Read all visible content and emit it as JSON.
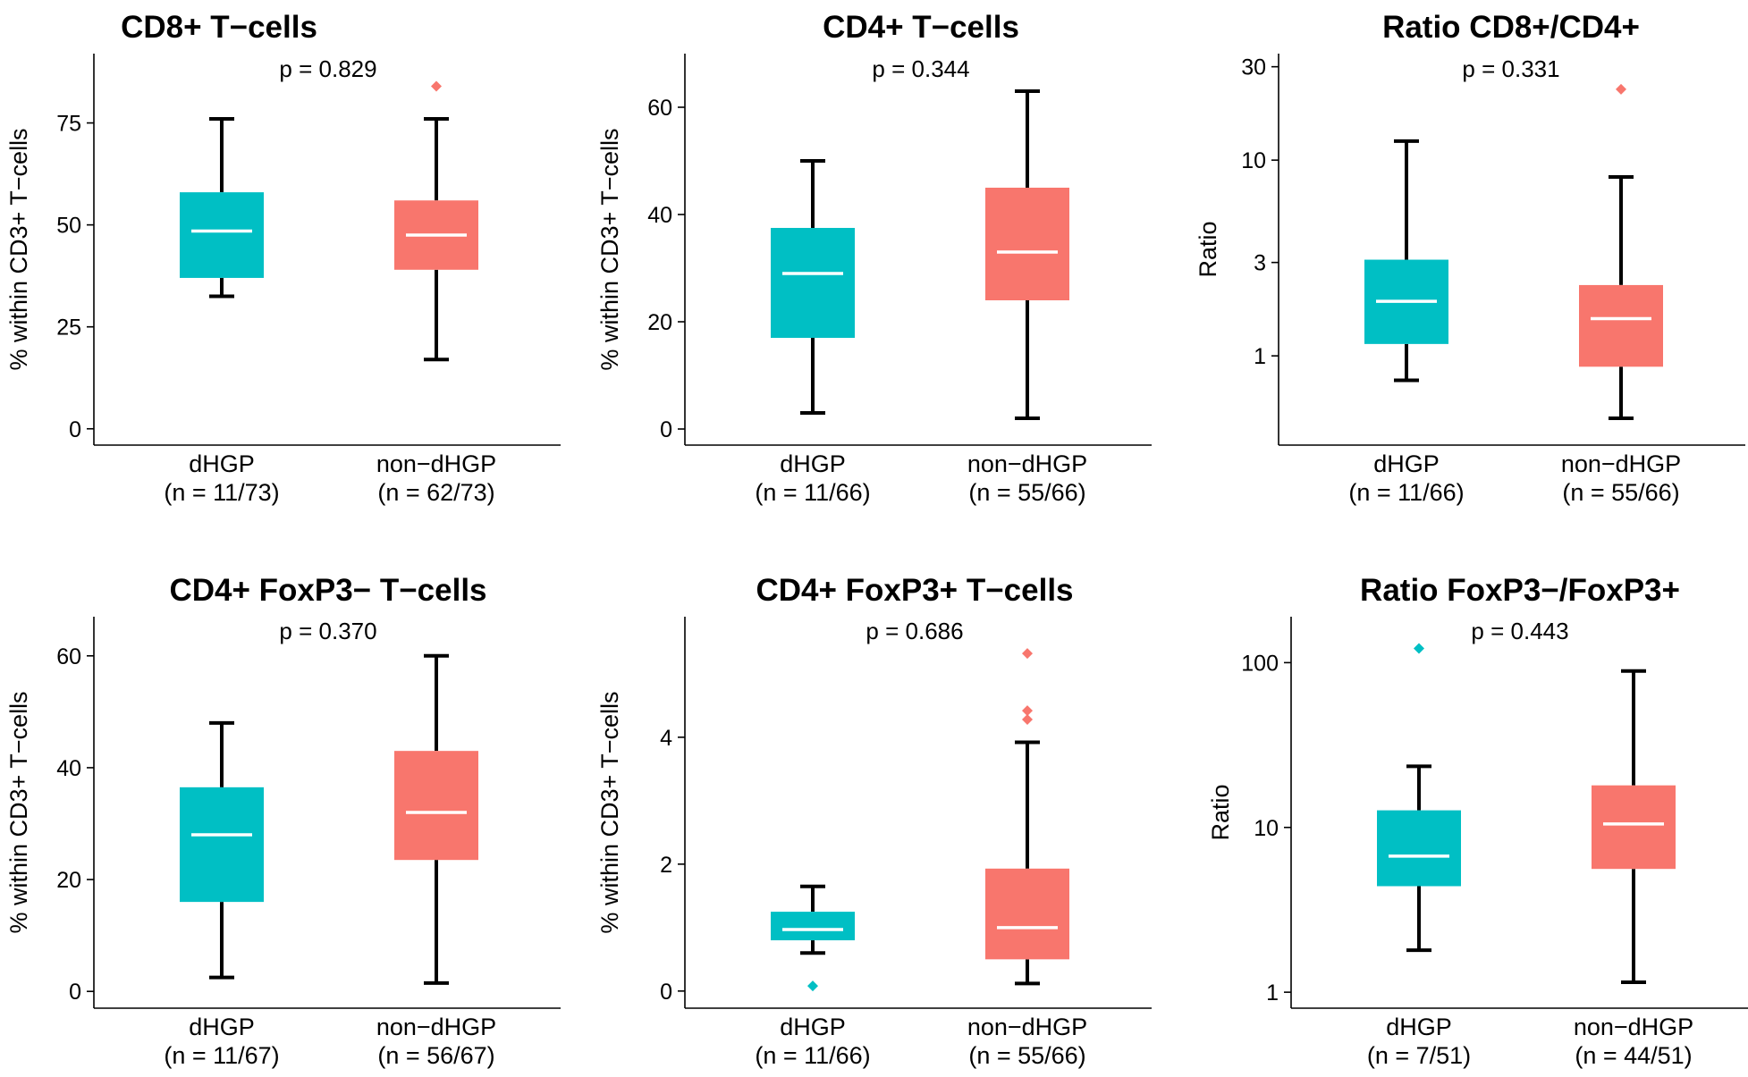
{
  "colors": {
    "dHGP": "#00BFC4",
    "non_dHGP": "#F8766D",
    "median": "#ffffff",
    "whisker": "#000000"
  },
  "chart_data": [
    {
      "type": "box",
      "title": "CD8+ T−cells",
      "pvalue": "p =  0.829",
      "ylabel": "% within CD3+ T−cells",
      "scale": "linear",
      "ylim": [
        -4,
        92
      ],
      "yticks": [
        0,
        25,
        50,
        75
      ],
      "ytick_labels": [
        "0",
        "25",
        "50",
        "75"
      ],
      "groups": [
        {
          "name": "dHGP",
          "n": "(n = 11/73)",
          "min": 32.5,
          "q1": 37,
          "median": 48.5,
          "q3": 58,
          "max": 76,
          "outliers": []
        },
        {
          "name": "non−dHGP",
          "n": "(n = 62/73)",
          "min": 17,
          "q1": 39,
          "median": 47.5,
          "q3": 56,
          "max": 76,
          "outliers": [
            84
          ]
        }
      ]
    },
    {
      "type": "box",
      "title": "CD4+ T−cells",
      "pvalue": "p =  0.344",
      "ylabel": "% within CD3+ T−cells",
      "scale": "linear",
      "ylim": [
        -3,
        70
      ],
      "yticks": [
        0,
        20,
        40,
        60
      ],
      "ytick_labels": [
        "0",
        "20",
        "40",
        "60"
      ],
      "groups": [
        {
          "name": "dHGP",
          "n": "(n = 11/66)",
          "min": 3,
          "q1": 17,
          "median": 29,
          "q3": 37.5,
          "max": 50,
          "outliers": []
        },
        {
          "name": "non−dHGP",
          "n": "(n = 55/66)",
          "min": 2,
          "q1": 24,
          "median": 33,
          "q3": 45,
          "max": 63,
          "outliers": []
        }
      ]
    },
    {
      "type": "box",
      "title": "Ratio CD8+/CD4+",
      "pvalue": "p =  0.331",
      "ylabel": "Ratio",
      "scale": "log",
      "ylim": [
        0.35,
        35
      ],
      "yticks": [
        1,
        3,
        10,
        30
      ],
      "ytick_labels": [
        "1",
        "3",
        "10",
        "30"
      ],
      "groups": [
        {
          "name": "dHGP",
          "n": "(n = 11/66)",
          "min": 0.75,
          "q1": 1.15,
          "median": 1.9,
          "q3": 3.1,
          "max": 12.5,
          "outliers": []
        },
        {
          "name": "non−dHGP",
          "n": "(n = 55/66)",
          "min": 0.48,
          "q1": 0.88,
          "median": 1.55,
          "q3": 2.3,
          "max": 8.2,
          "outliers": [
            23
          ]
        }
      ]
    },
    {
      "type": "box",
      "title": "CD4+ FoxP3− T−cells",
      "pvalue": "p =  0.370",
      "ylabel": "% within CD3+ T−cells",
      "scale": "linear",
      "ylim": [
        -3,
        67
      ],
      "yticks": [
        0,
        20,
        40,
        60
      ],
      "ytick_labels": [
        "0",
        "20",
        "40",
        "60"
      ],
      "groups": [
        {
          "name": "dHGP",
          "n": "(n = 11/67)",
          "min": 2.5,
          "q1": 16,
          "median": 28,
          "q3": 36.5,
          "max": 48,
          "outliers": []
        },
        {
          "name": "non−dHGP",
          "n": "(n = 56/67)",
          "min": 1.5,
          "q1": 23.5,
          "median": 32,
          "q3": 43,
          "max": 60,
          "outliers": []
        }
      ]
    },
    {
      "type": "box",
      "title": "CD4+ FoxP3+ T−cells",
      "pvalue": "p =  0.686",
      "ylabel": "% within CD3+ T−cells",
      "scale": "linear",
      "ylim": [
        -0.27,
        5.9
      ],
      "yticks": [
        0,
        2,
        4
      ],
      "ytick_labels": [
        "0",
        "2",
        "4"
      ],
      "groups": [
        {
          "name": "dHGP",
          "n": "(n = 11/66)",
          "min": 0.6,
          "q1": 0.8,
          "median": 0.97,
          "q3": 1.25,
          "max": 1.65,
          "outliers": [
            0.08
          ]
        },
        {
          "name": "non−dHGP",
          "n": "(n = 55/66)",
          "min": 0.12,
          "q1": 0.5,
          "median": 1.0,
          "q3": 1.93,
          "max": 3.92,
          "outliers": [
            4.28,
            4.42,
            5.32
          ]
        }
      ]
    },
    {
      "type": "box",
      "title": "Ratio FoxP3−/FoxP3+",
      "pvalue": "p =  0.443",
      "ylabel": "Ratio",
      "scale": "log",
      "ylim": [
        0.8,
        190
      ],
      "yticks": [
        1,
        10,
        100
      ],
      "ytick_labels": [
        "1",
        "10",
        "100"
      ],
      "groups": [
        {
          "name": "dHGP",
          "n": "(n = 7/51)",
          "min": 1.8,
          "q1": 4.4,
          "median": 6.7,
          "q3": 12.7,
          "max": 23.5,
          "outliers": [
            122
          ]
        },
        {
          "name": "non−dHGP",
          "n": "(n = 44/51)",
          "min": 1.15,
          "q1": 5.6,
          "median": 10.5,
          "q3": 18,
          "max": 89,
          "outliers": []
        }
      ]
    }
  ]
}
